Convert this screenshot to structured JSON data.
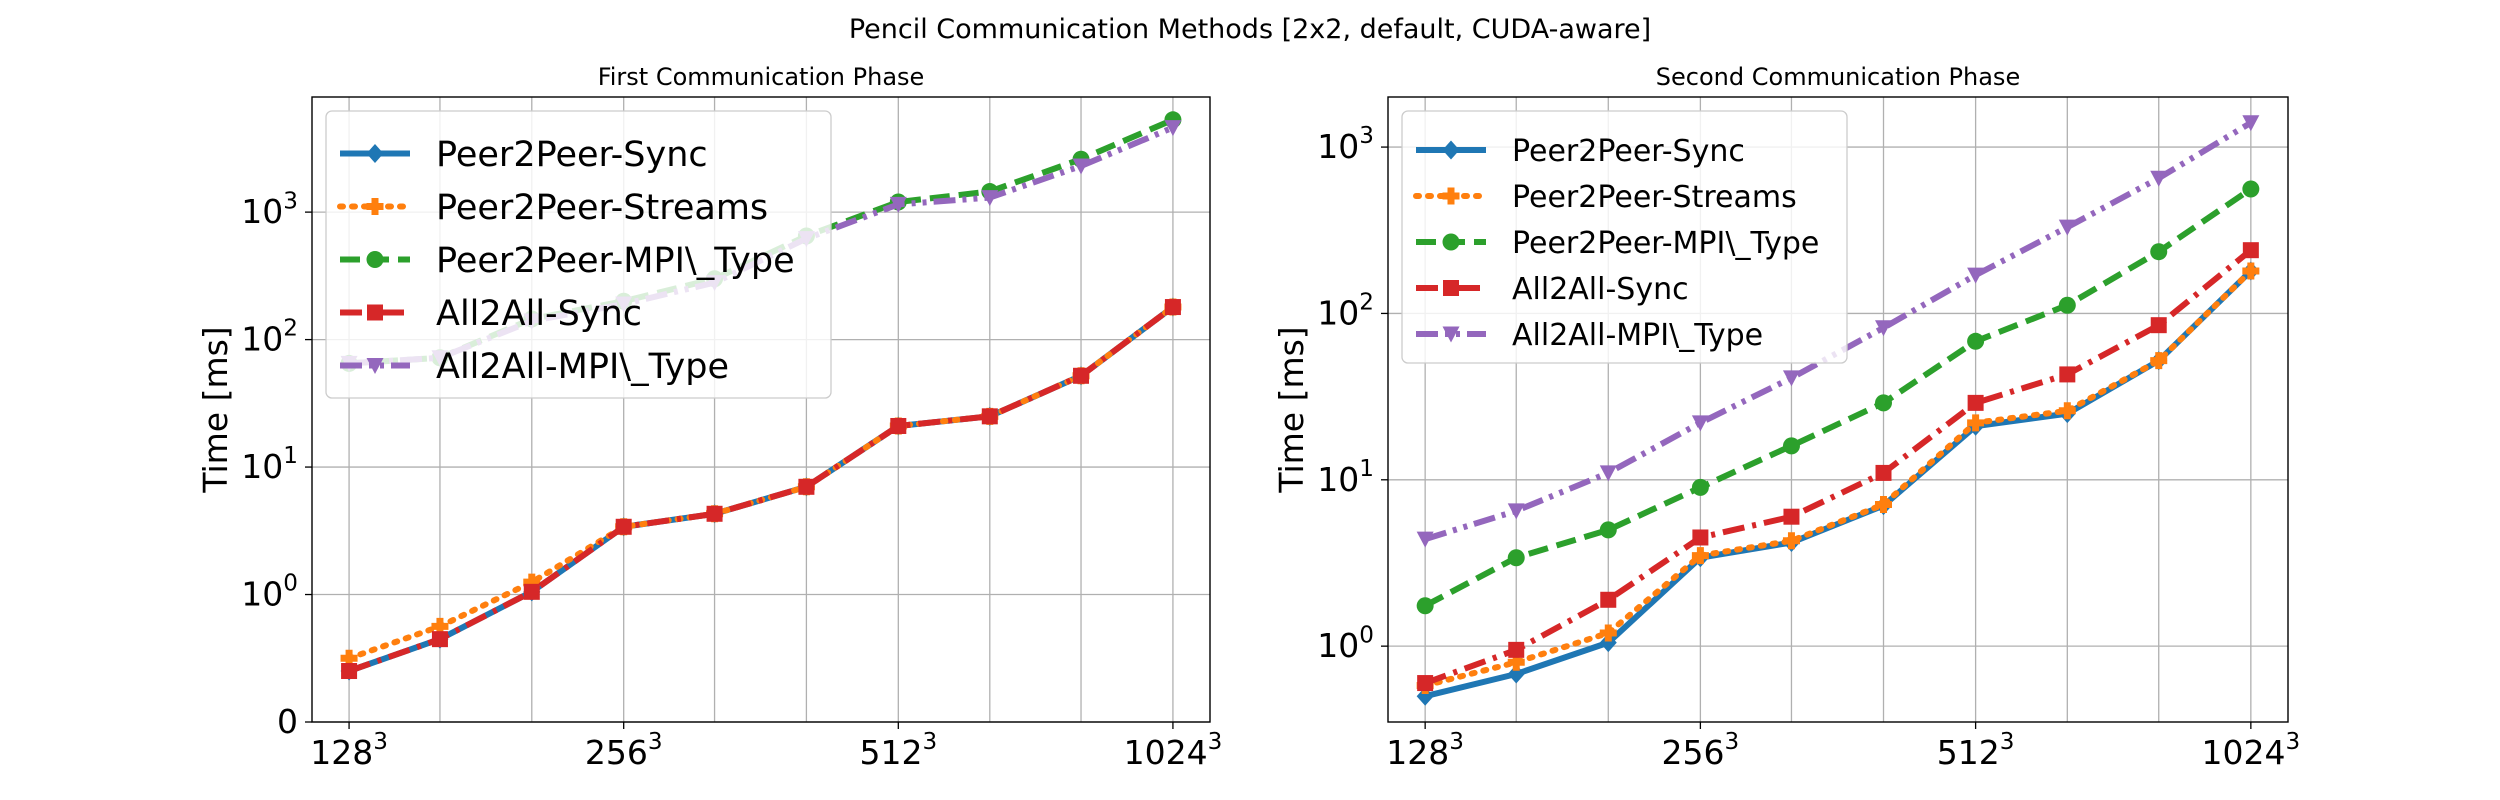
{
  "figure": {
    "suptitle": "Pencil Communication Methods [2x2, default, CUDA-aware]"
  },
  "series_styles": [
    {
      "name": "Peer2Peer-Sync",
      "color": "#1f77b4",
      "dash": "solid",
      "marker": "diamond"
    },
    {
      "name": "Peer2Peer-Streams",
      "color": "#ff7f0e",
      "dash": "dotted",
      "marker": "plus-filled"
    },
    {
      "name": "Peer2Peer-MPI\\_Type",
      "color": "#2ca02c",
      "dash": "dashed",
      "marker": "circle"
    },
    {
      "name": "All2All-Sync",
      "color": "#d62728",
      "dash": "dashdot",
      "marker": "square"
    },
    {
      "name": "All2All-MPI\\_Type",
      "color": "#9467bd",
      "dash": "dashdotdot",
      "marker": "triangle-down"
    }
  ],
  "chart_data": [
    {
      "type": "line",
      "title": "First Communication Phase",
      "xlabel": "",
      "ylabel": "Time [ms]",
      "yscale": "symlog",
      "ylim": [
        0,
        8000
      ],
      "yticks": [
        "0",
        "10^0",
        "10^1",
        "10^2",
        "10^3"
      ],
      "x": [
        128,
        161,
        203,
        256,
        322,
        406,
        512,
        645,
        812,
        1024
      ],
      "xtick_labels": [
        "128^3",
        "256^3",
        "512^3",
        "1024^3"
      ],
      "grid": true,
      "legend": "upper left",
      "series": [
        {
          "name": "Peer2Peer-Sync",
          "values": [
            0.4,
            0.65,
            1.05,
            3.4,
            4.3,
            7.0,
            21,
            25,
            52,
            180
          ]
        },
        {
          "name": "Peer2Peer-Streams",
          "values": [
            0.5,
            0.75,
            1.25,
            3.4,
            4.3,
            7.0,
            21,
            25,
            52,
            180
          ]
        },
        {
          "name": "Peer2Peer-MPI\\_Type",
          "values": [
            65,
            72,
            145,
            200,
            300,
            650,
            1200,
            1450,
            2600,
            5300
          ]
        },
        {
          "name": "All2All-Sync",
          "values": [
            0.4,
            0.65,
            1.05,
            3.4,
            4.3,
            7.0,
            21,
            25,
            52,
            180
          ]
        },
        {
          "name": "All2All-MPI\\_Type",
          "values": [
            65,
            72,
            140,
            190,
            280,
            620,
            1150,
            1300,
            2300,
            4600
          ]
        }
      ]
    },
    {
      "type": "line",
      "title": "Second Communication Phase",
      "xlabel": "",
      "ylabel": "Time [ms]",
      "yscale": "log",
      "ylim": [
        0.35,
        2000
      ],
      "yticks": [
        "10^0",
        "10^1",
        "10^2",
        "10^3"
      ],
      "x": [
        128,
        161,
        203,
        256,
        322,
        406,
        512,
        645,
        812,
        1024
      ],
      "xtick_labels": [
        "128^3",
        "256^3",
        "512^3",
        "1024^3"
      ],
      "grid": true,
      "legend": "upper left",
      "series": [
        {
          "name": "Peer2Peer-Sync",
          "values": [
            0.5,
            0.68,
            1.05,
            3.4,
            4.2,
            7.0,
            21,
            25,
            52,
            180
          ]
        },
        {
          "name": "Peer2Peer-Streams",
          "values": [
            0.58,
            0.8,
            1.2,
            3.5,
            4.3,
            7.1,
            22,
            26,
            52,
            180
          ]
        },
        {
          "name": "Peer2Peer-MPI\\_Type",
          "values": [
            1.75,
            3.4,
            5.0,
            9.0,
            16,
            29,
            68,
            112,
            235,
            560
          ]
        },
        {
          "name": "All2All-Sync",
          "values": [
            0.6,
            0.95,
            1.9,
            4.5,
            6.0,
            11,
            29,
            43,
            85,
            240
          ]
        },
        {
          "name": "All2All-MPI\\_Type",
          "values": [
            4.4,
            6.5,
            11,
            22,
            41,
            82,
            170,
            330,
            650,
            1400
          ]
        }
      ]
    }
  ]
}
